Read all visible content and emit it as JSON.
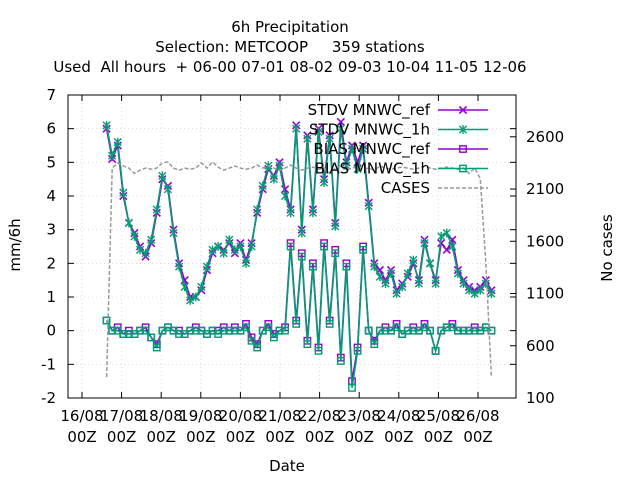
{
  "chart_data": {
    "type": "line",
    "title": "6h Precipitation",
    "subtitle1": "Selection: METCOOP     359 stations",
    "subtitle2": "Used  All hours  + 06-00 07-01 08-02 09-03 10-04 11-05 12-06",
    "xlabel": "Date",
    "ylabel": "mm/6h",
    "y2label": "No cases",
    "ylim": [
      -2,
      7
    ],
    "y2lim": [
      100,
      3000
    ],
    "xlim": [
      0,
      54
    ],
    "yticks": [
      "-2",
      "-1",
      "0",
      "1",
      "2",
      "3",
      "4",
      "5",
      "6",
      "7"
    ],
    "y2ticks": [
      "100",
      "600",
      "1100",
      "1600",
      "2100",
      "2600"
    ],
    "xticks": [
      {
        "d": "16/08",
        "h": "00Z"
      },
      {
        "d": "17/08",
        "h": "00Z"
      },
      {
        "d": "18/08",
        "h": "00Z"
      },
      {
        "d": "19/08",
        "h": "00Z"
      },
      {
        "d": "20/08",
        "h": "00Z"
      },
      {
        "d": "21/08",
        "h": "00Z"
      },
      {
        "d": "22/08",
        "h": "00Z"
      },
      {
        "d": "23/08",
        "h": "00Z"
      },
      {
        "d": "24/08",
        "h": "00Z"
      },
      {
        "d": "25/08",
        "h": "00Z"
      },
      {
        "d": "26/08",
        "h": "00Z"
      }
    ],
    "legend_position": "top-right",
    "series": [
      {
        "name": "STDV MNWC_ref",
        "color": "#9400d3",
        "marker": "x",
        "axis": "y",
        "values": [
          6.0,
          5.1,
          5.5,
          4.0,
          3.2,
          2.9,
          2.5,
          2.2,
          2.6,
          3.5,
          4.5,
          4.3,
          3.0,
          2.0,
          1.5,
          1.0,
          1.0,
          1.2,
          1.8,
          2.3,
          2.5,
          2.4,
          2.6,
          2.3,
          2.6,
          2.1,
          2.6,
          3.5,
          4.2,
          4.8,
          4.6,
          5.0,
          4.2,
          3.6,
          6.1,
          3.0,
          5.8,
          3.6,
          6.0,
          4.5,
          5.8,
          3.2,
          6.2,
          5.0,
          5.5,
          5.0,
          5.5,
          3.8,
          2.0,
          1.8,
          1.5,
          1.8,
          1.2,
          1.4,
          1.6,
          2.0,
          1.5,
          2.7,
          2.0,
          1.5,
          2.6,
          2.4,
          2.7,
          1.8,
          1.5,
          1.3,
          1.2,
          1.3,
          1.5,
          1.2
        ]
      },
      {
        "name": "STDV MNWC_1h",
        "color": "#009e73",
        "marker": "*",
        "axis": "y",
        "values": [
          6.1,
          5.2,
          5.6,
          4.1,
          3.2,
          2.8,
          2.4,
          2.3,
          2.7,
          3.6,
          4.6,
          4.2,
          2.9,
          1.9,
          1.3,
          0.9,
          1.0,
          1.3,
          1.9,
          2.4,
          2.5,
          2.3,
          2.7,
          2.4,
          2.5,
          2.0,
          2.5,
          3.6,
          4.3,
          4.9,
          4.5,
          4.9,
          4.0,
          3.5,
          6.0,
          2.9,
          5.7,
          3.5,
          5.9,
          4.4,
          5.7,
          3.1,
          6.0,
          4.9,
          5.4,
          4.8,
          5.4,
          3.7,
          1.9,
          1.6,
          1.4,
          1.7,
          1.1,
          1.3,
          1.7,
          2.1,
          1.4,
          2.6,
          2.0,
          1.4,
          2.8,
          2.9,
          2.5,
          1.7,
          1.4,
          1.2,
          1.1,
          1.2,
          1.4,
          1.1
        ]
      },
      {
        "name": "BIAS MNWC_ref",
        "color": "#9400d3",
        "marker": "square",
        "axis": "y",
        "values": [
          0.3,
          0.0,
          0.1,
          -0.1,
          0.0,
          -0.1,
          0.0,
          0.1,
          -0.2,
          -0.4,
          0.0,
          0.1,
          0.0,
          0.0,
          -0.1,
          0.0,
          0.1,
          0.0,
          -0.1,
          0.0,
          0.0,
          0.1,
          0.0,
          0.1,
          0.0,
          0.2,
          -0.2,
          -0.4,
          0.0,
          0.2,
          -0.1,
          0.0,
          0.1,
          2.6,
          0.3,
          2.3,
          -0.3,
          2.0,
          -0.5,
          2.6,
          0.3,
          2.4,
          -0.8,
          2.0,
          -1.5,
          -0.5,
          2.5,
          0.0,
          -0.3,
          0.0,
          0.1,
          0.0,
          0.2,
          -0.1,
          0.0,
          0.1,
          0.0,
          0.2,
          0.0,
          -0.6,
          0.0,
          0.1,
          0.2,
          0.0,
          0.0,
          0.0,
          0.1,
          0.0,
          0.1,
          0.0
        ]
      },
      {
        "name": "BIAS MNWC_1h",
        "color": "#009e73",
        "marker": "square",
        "axis": "y",
        "values": [
          0.3,
          0.0,
          0.0,
          -0.1,
          -0.1,
          -0.1,
          0.0,
          0.0,
          -0.2,
          -0.5,
          0.0,
          0.1,
          0.0,
          -0.1,
          -0.1,
          0.0,
          0.0,
          0.0,
          -0.1,
          0.0,
          -0.1,
          0.0,
          0.0,
          0.0,
          0.0,
          0.1,
          -0.3,
          -0.5,
          0.0,
          0.1,
          -0.2,
          0.0,
          0.0,
          2.5,
          0.2,
          2.2,
          -0.4,
          1.9,
          -0.6,
          2.5,
          0.2,
          2.3,
          -0.9,
          1.9,
          -1.7,
          -0.6,
          2.4,
          0.0,
          -0.4,
          0.0,
          0.0,
          0.0,
          0.1,
          -0.1,
          0.0,
          0.0,
          0.0,
          0.1,
          0.0,
          -0.6,
          0.0,
          0.1,
          0.1,
          0.0,
          0.0,
          0.0,
          0.0,
          0.0,
          0.1,
          0.0
        ]
      },
      {
        "name": "CASES",
        "color": "#999999",
        "marker": "none",
        "dashed": true,
        "axis": "y2",
        "values": [
          300,
          2300,
          2350,
          2320,
          2300,
          2250,
          2280,
          2300,
          2290,
          2300,
          2350,
          2360,
          2300,
          2280,
          2300,
          2290,
          2300,
          2350,
          2300,
          2360,
          2310,
          2280,
          2300,
          2320,
          2300,
          2290,
          2300,
          2330,
          2300,
          2320,
          2300,
          2280,
          2300,
          2330,
          2300,
          2280,
          2300,
          2310,
          2290,
          2300,
          2250,
          2300,
          2320,
          2280,
          2300,
          2310,
          2290,
          2300,
          2280,
          2320,
          2300,
          2290,
          2300,
          2310,
          2300,
          2290,
          2300,
          2320,
          2300,
          2290,
          2300,
          2310,
          2300,
          2290,
          2300,
          2250,
          2300,
          2200,
          1400,
          300
        ]
      }
    ]
  }
}
